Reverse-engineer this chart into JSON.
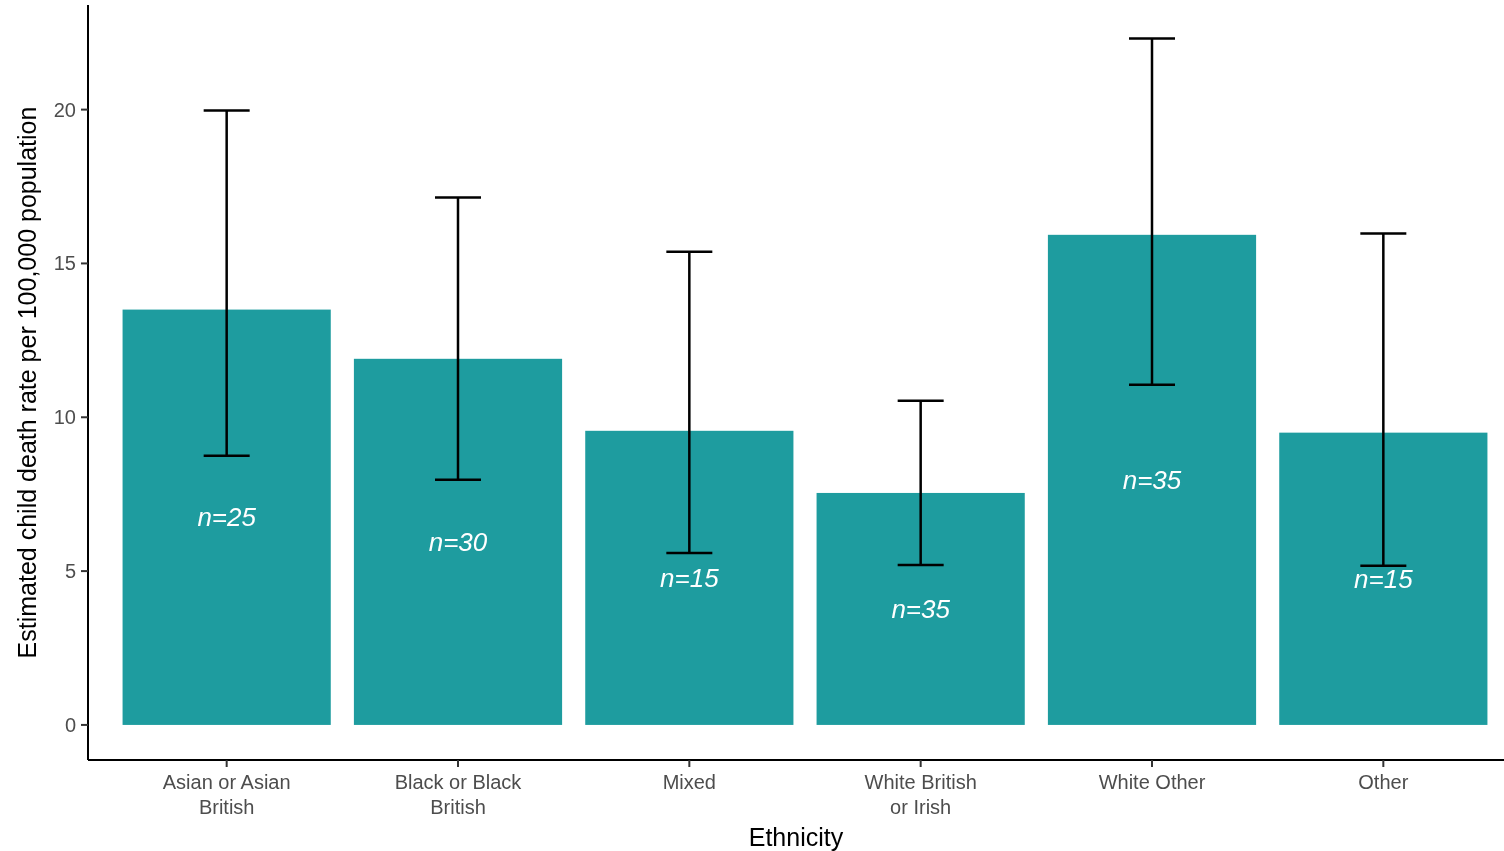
{
  "chart_data": {
    "type": "bar",
    "xlabel": "Ethnicity",
    "ylabel": "Estimated child death rate per 100,000 population",
    "categories": [
      "Asian or Asian British",
      "Black or Black British",
      "Mixed",
      "White British or Irish",
      "White Other",
      "Other"
    ],
    "values": [
      13.5,
      11.9,
      9.56,
      7.54,
      15.93,
      9.5
    ],
    "errors": [
      [
        8.75,
        19.97
      ],
      [
        7.97,
        17.14
      ],
      [
        5.59,
        15.38
      ],
      [
        5.2,
        10.54
      ],
      [
        11.06,
        22.31
      ],
      [
        5.17,
        15.97
      ]
    ],
    "color": "#1e9c9f",
    "ylim": [
      -1.14,
      23.4
    ],
    "yticks": [
      0,
      5,
      10,
      15,
      20
    ],
    "grid": false,
    "annotations": [
      "n=25",
      "n=30",
      "n=15",
      "n=35",
      "n=35",
      "n=15"
    ]
  }
}
